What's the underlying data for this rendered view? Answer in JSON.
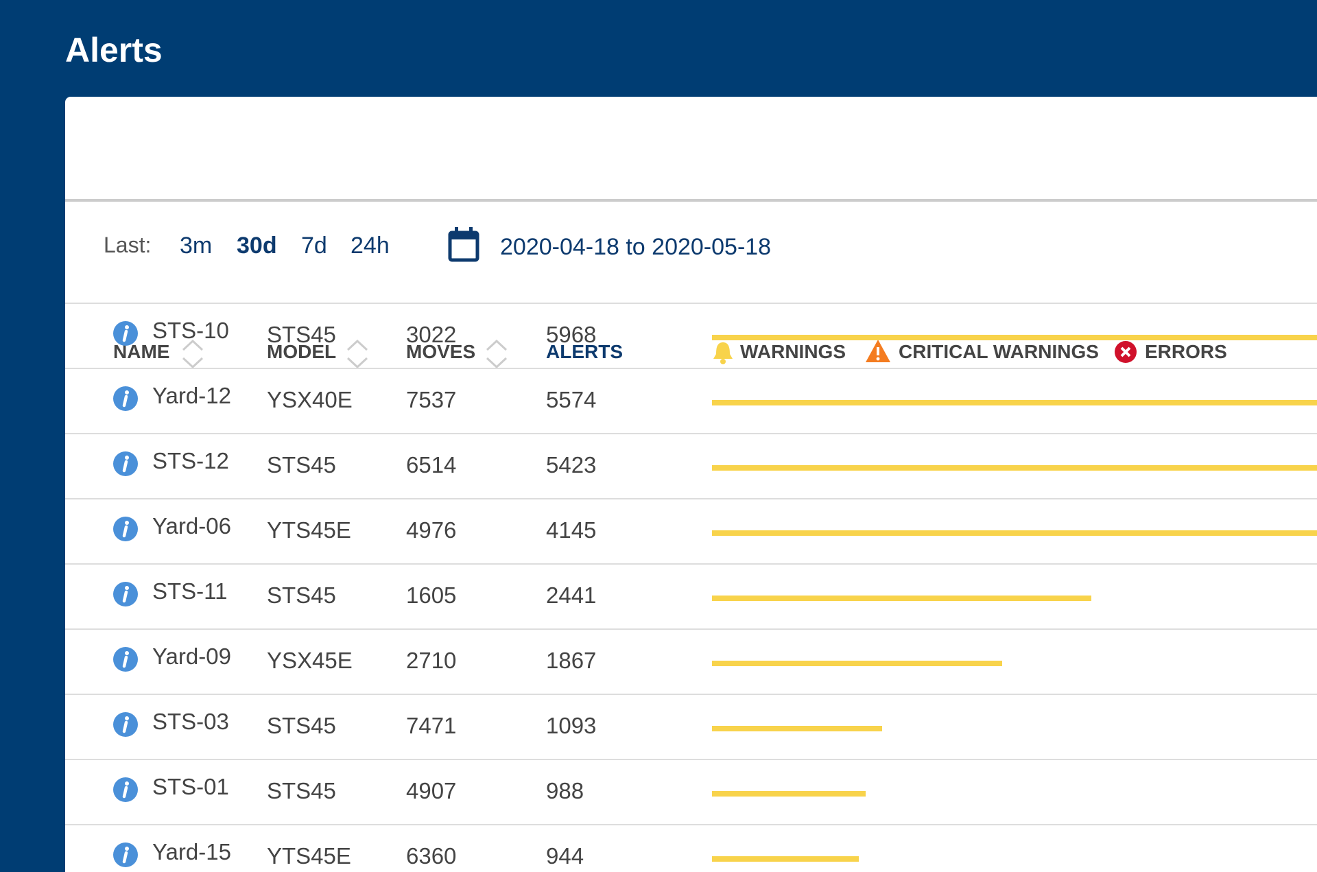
{
  "header": {
    "title": "Alerts"
  },
  "filters": {
    "label": "Last:",
    "options": [
      "3m",
      "30d",
      "7d",
      "24h"
    ],
    "active": 1,
    "date_range": "2020-04-18 to 2020-05-18"
  },
  "table": {
    "columns": [
      "NAME",
      "MODEL",
      "MOVES",
      "ALERTS"
    ],
    "legend": [
      "WARNINGS",
      "CRITICAL WARNINGS",
      "ERRORS"
    ],
    "rows": [
      [
        "STS-10",
        "STS45",
        3022,
        5968
      ],
      [
        "Yard-12",
        "YSX40E",
        7537,
        5574
      ],
      [
        "STS-12",
        "STS45",
        6514,
        5423
      ],
      [
        "Yard-06",
        "YTS45E",
        4976,
        4145
      ],
      [
        "STS-11",
        "STS45",
        1605,
        2441
      ],
      [
        "Yard-09",
        "YSX45E",
        2710,
        1867
      ],
      [
        "STS-03",
        "STS45",
        7471,
        1093
      ],
      [
        "STS-01",
        "STS45",
        4907,
        988
      ],
      [
        "Yard-15",
        "YTS45E",
        6360,
        944
      ]
    ]
  }
}
